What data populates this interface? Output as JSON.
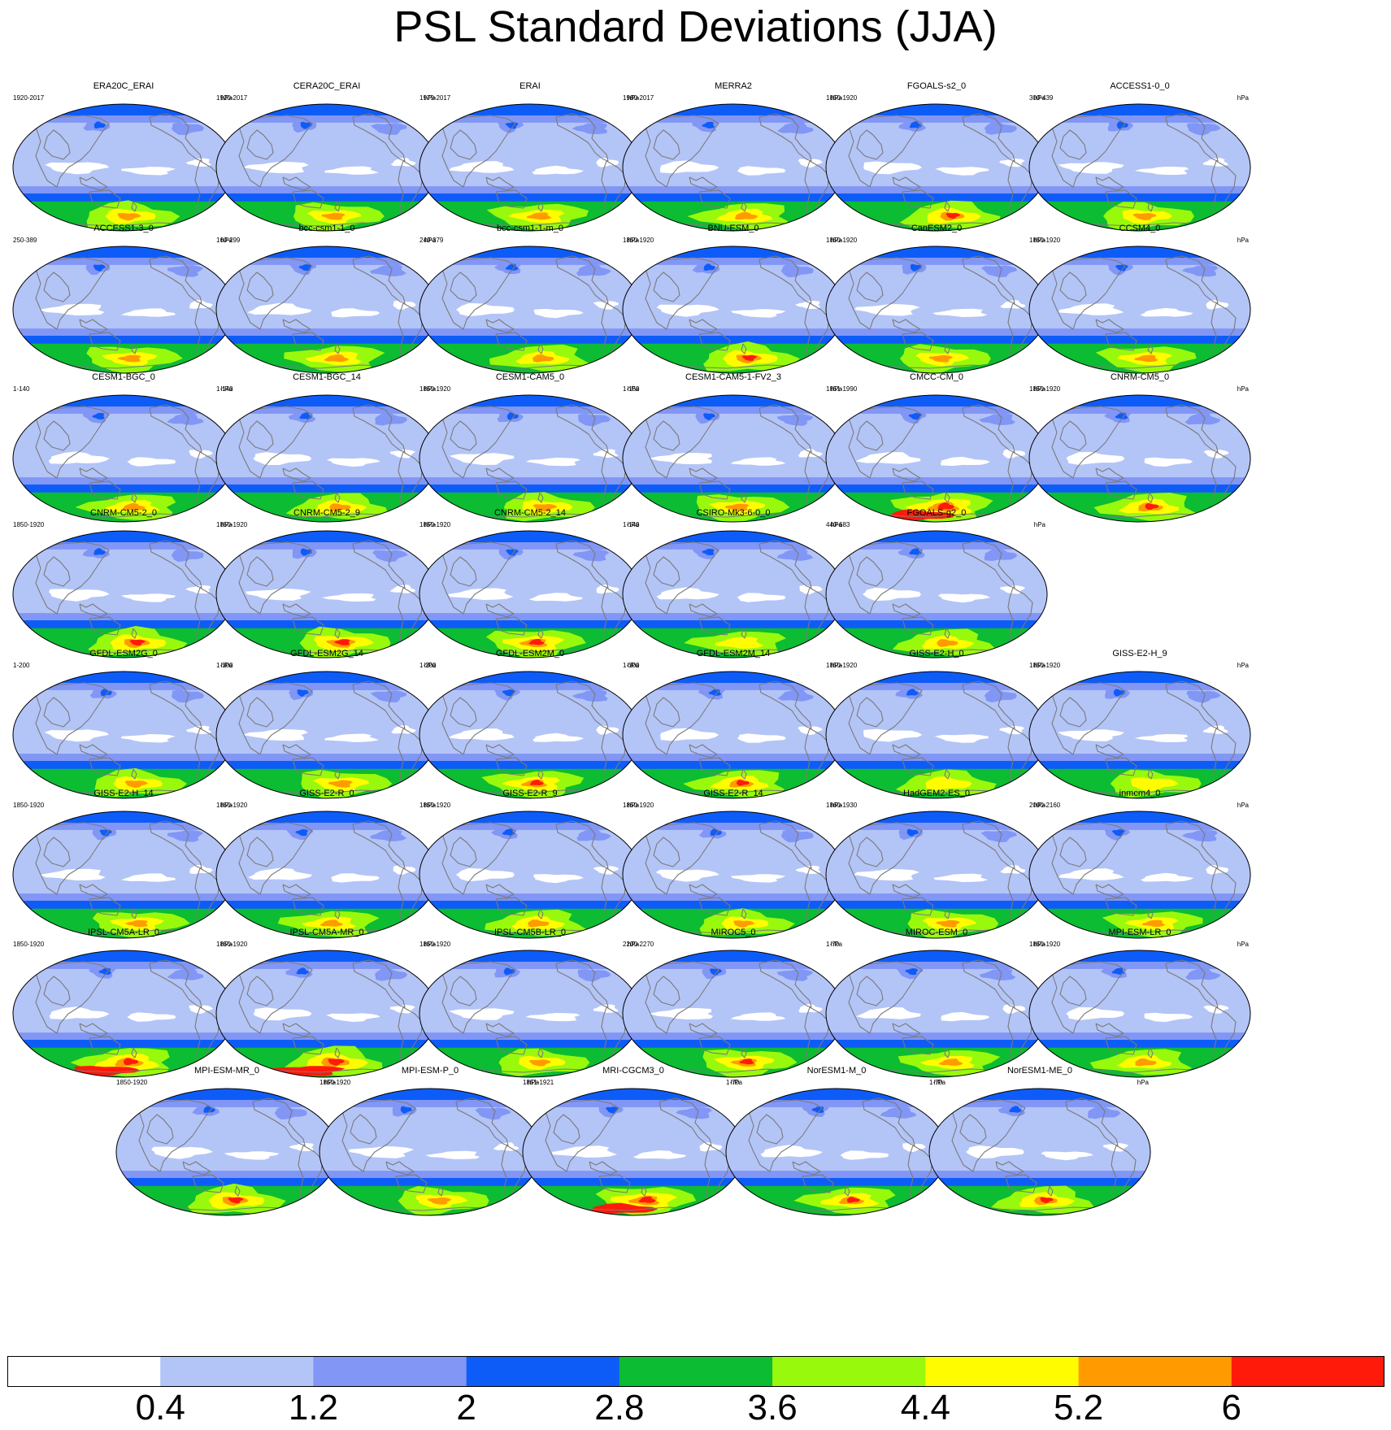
{
  "title": "PSL Standard Deviations (JJA)",
  "units": "hPa",
  "map": {
    "projection": "robinson",
    "center_longitude": 180
  },
  "panels": [
    {
      "name": "ERA20C_ERAI",
      "years": "1920-2017",
      "intensity": 0.62
    },
    {
      "name": "CERA20C_ERAI",
      "years": "1920-2017",
      "intensity": 0.6
    },
    {
      "name": "ERAI",
      "years": "1979-2017",
      "intensity": 0.62
    },
    {
      "name": "MERRA2",
      "years": "1980-2017",
      "intensity": 0.62
    },
    {
      "name": "FGOALS-s2_0",
      "years": "1850-1920",
      "intensity": 0.68
    },
    {
      "name": "ACCESS1-0_0",
      "years": "300-439",
      "intensity": 0.6
    },
    {
      "name": "ACCESS1-3_0",
      "years": "250-389",
      "intensity": 0.6
    },
    {
      "name": "bcc-csm1-1_0",
      "years": "160-299",
      "intensity": 0.62
    },
    {
      "name": "bcc-csm1-1-m_0",
      "years": "240-379",
      "intensity": 0.6
    },
    {
      "name": "BNU-ESM_0",
      "years": "1850-1920",
      "intensity": 0.7
    },
    {
      "name": "CanESM2_0",
      "years": "1850-1920",
      "intensity": 0.6
    },
    {
      "name": "CCSM4_0",
      "years": "1850-1920",
      "intensity": 0.6
    },
    {
      "name": "CESM1-BGC_0",
      "years": "1-140",
      "intensity": 0.6
    },
    {
      "name": "CESM1-BGC_14",
      "years": "1-140",
      "intensity": 0.6
    },
    {
      "name": "CESM1-CAM5_0",
      "years": "1850-1920",
      "intensity": 0.62
    },
    {
      "name": "CESM1-CAM5-1-FV2_3",
      "years": "1-150",
      "intensity": 0.62
    },
    {
      "name": "CMCC-CM_0",
      "years": "1851-1990",
      "intensity": 0.82
    },
    {
      "name": "CNRM-CM5_0",
      "years": "1850-1920",
      "intensity": 0.7
    },
    {
      "name": "CNRM-CM5-2_0",
      "years": "1850-1920",
      "intensity": 0.72
    },
    {
      "name": "CNRM-CM5-2_9",
      "years": "1850-1920",
      "intensity": 0.74
    },
    {
      "name": "CNRM-CM5-2_14",
      "years": "1850-1920",
      "intensity": 0.72
    },
    {
      "name": "CSIRO-Mk3-6-0_0",
      "years": "1-140",
      "intensity": 0.5
    },
    {
      "name": "FGOALS-g2_0",
      "years": "440-683",
      "intensity": 0.6
    },
    {
      "name": "GFDL-ESM2G_0",
      "years": "1-200",
      "intensity": 0.6
    },
    {
      "name": "GFDL-ESM2G_14",
      "years": "1-300",
      "intensity": 0.62
    },
    {
      "name": "GFDL-ESM2M_0",
      "years": "1-200",
      "intensity": 0.66
    },
    {
      "name": "GFDL-ESM2M_14",
      "years": "1-300",
      "intensity": 0.66
    },
    {
      "name": "GISS-E2-H_0",
      "years": "1850-1920",
      "intensity": 0.55
    },
    {
      "name": "GISS-E2-H_9",
      "years": "1850-1920",
      "intensity": 0.55
    },
    {
      "name": "GISS-E2-H_14",
      "years": "1850-1920",
      "intensity": 0.58
    },
    {
      "name": "GISS-E2-R_0",
      "years": "1850-1920",
      "intensity": 0.58
    },
    {
      "name": "GISS-E2-R_9",
      "years": "1850-1920",
      "intensity": 0.6
    },
    {
      "name": "GISS-E2-R_14",
      "years": "1850-1920",
      "intensity": 0.56
    },
    {
      "name": "HadGEM2-ES_0",
      "years": "1860-1930",
      "intensity": 0.6
    },
    {
      "name": "inmcm4_0",
      "years": "2090-2160",
      "intensity": 0.58
    },
    {
      "name": "IPSL-CM5A-LR_0",
      "years": "1850-1920",
      "intensity": 0.76
    },
    {
      "name": "IPSL-CM5A-MR_0",
      "years": "1850-1920",
      "intensity": 0.8
    },
    {
      "name": "IPSL-CM5B-LR_0",
      "years": "1850-1920",
      "intensity": 0.56
    },
    {
      "name": "MIROC5_0",
      "years": "2200-2270",
      "intensity": 0.68
    },
    {
      "name": "MIROC-ESM_0",
      "years": "1-70",
      "intensity": 0.6
    },
    {
      "name": "MPI-ESM-LR_0",
      "years": "1850-1920",
      "intensity": 0.6
    },
    {
      "name": "MPI-ESM-MR_0",
      "years": "1850-1920",
      "intensity": 0.72
    },
    {
      "name": "MPI-ESM-P_0",
      "years": "1850-1920",
      "intensity": 0.6
    },
    {
      "name": "MRI-CGCM3_0",
      "years": "1851-1921",
      "intensity": 0.8
    },
    {
      "name": "NorESM1-M_0",
      "years": "1-70",
      "intensity": 0.66
    },
    {
      "name": "NorESM1-ME_0",
      "years": "1-70",
      "intensity": 0.66
    }
  ],
  "colorbar": {
    "colors": [
      "#ffffff",
      "#b3c4f7",
      "#8196f5",
      "#0e5cf8",
      "#0cbc32",
      "#98f90c",
      "#fffc00",
      "#ff9b00",
      "#ff1a0a"
    ],
    "labels": [
      "0.4",
      "1.2",
      "2",
      "2.8",
      "3.6",
      "4.4",
      "5.2",
      "6"
    ]
  }
}
